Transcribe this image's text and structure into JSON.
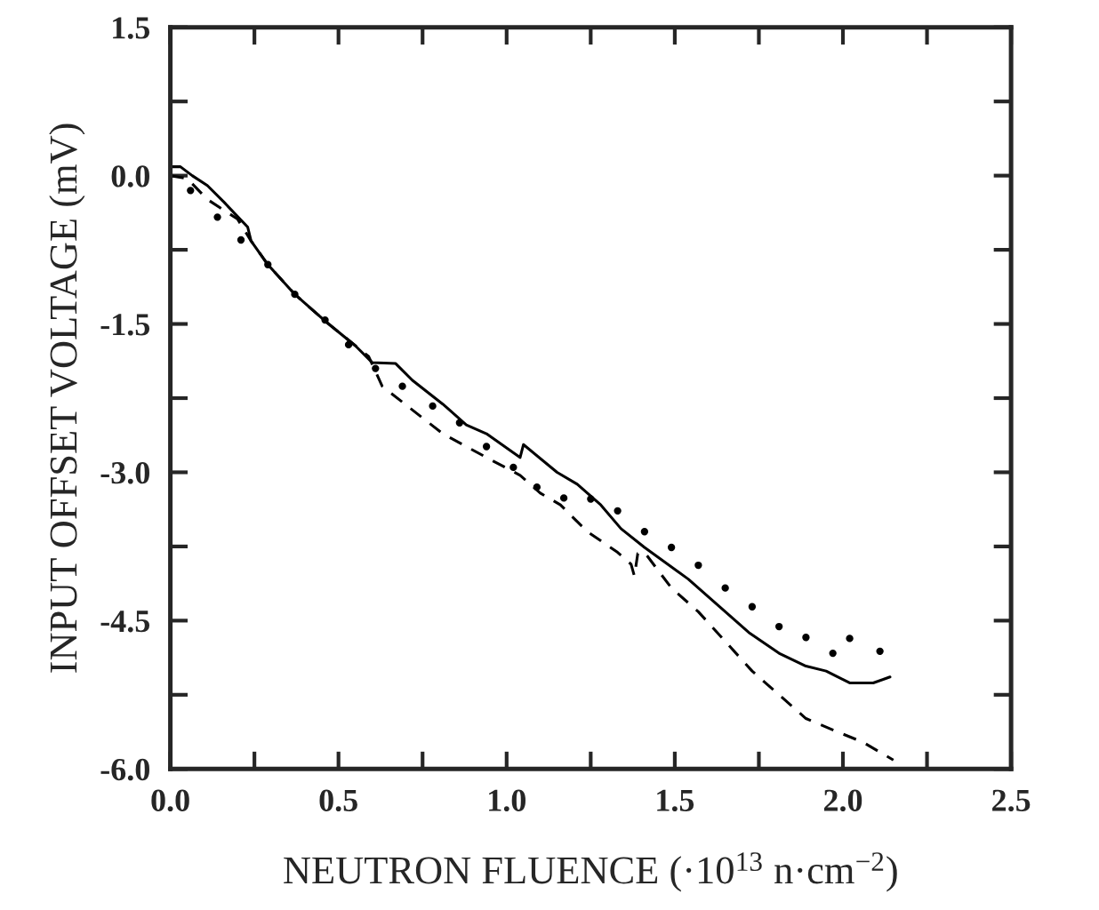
{
  "chart_data": {
    "type": "line",
    "xlabel": "NEUTRON FLUENCE (·10$^{13}$ n·cm$^{−2}$)",
    "ylabel": "INPUT OFFSET VOLTAGE (mV)",
    "xlim": [
      0,
      2.5
    ],
    "ylim": [
      -6.0,
      1.5
    ],
    "xticks": [
      {
        "value": 0,
        "label": "0.0"
      },
      {
        "value": 0.25,
        "label": null
      },
      {
        "value": 0.5,
        "label": "0.5"
      },
      {
        "value": 0.75,
        "label": null
      },
      {
        "value": 1.0,
        "label": "1.0"
      },
      {
        "value": 1.25,
        "label": null
      },
      {
        "value": 1.5,
        "label": "1.5"
      },
      {
        "value": 1.75,
        "label": null
      },
      {
        "value": 2.0,
        "label": "2.0"
      },
      {
        "value": 2.25,
        "label": null
      },
      {
        "value": 2.5,
        "label": "2.5"
      }
    ],
    "yticks": [
      {
        "value": -6.0,
        "label": "-6.0"
      },
      {
        "value": -5.25,
        "label": null
      },
      {
        "value": -4.5,
        "label": "-4.5"
      },
      {
        "value": -3.75,
        "label": null
      },
      {
        "value": -3.0,
        "label": "-3.0"
      },
      {
        "value": -2.25,
        "label": null
      },
      {
        "value": -1.5,
        "label": "-1.5"
      },
      {
        "value": -0.75,
        "label": null
      },
      {
        "value": 0.0,
        "label": "0.0"
      },
      {
        "value": 0.75,
        "label": null
      },
      {
        "value": 1.5,
        "label": "1.5"
      }
    ],
    "grid": false,
    "legend": false,
    "series": [
      {
        "color": "#000000",
        "line_style": "solid",
        "x": [
          0,
          0.03,
          0.065,
          0.11,
          0.16,
          0.23,
          0.24,
          0.29,
          0.37,
          0.46,
          0.55,
          0.6,
          0.67,
          0.72,
          0.81,
          0.88,
          0.94,
          1.04,
          1.05,
          1.15,
          1.21,
          1.28,
          1.34,
          1.41,
          1.54,
          1.63,
          1.72,
          1.81,
          1.89,
          1.95,
          2.02,
          2.09,
          2.14
        ],
        "values": [
          0.09,
          0.09,
          0.0,
          -0.1,
          -0.27,
          -0.52,
          -0.66,
          -0.9,
          -1.2,
          -1.47,
          -1.72,
          -1.89,
          -1.9,
          -2.07,
          -2.31,
          -2.52,
          -2.61,
          -2.85,
          -2.72,
          -3.0,
          -3.12,
          -3.33,
          -3.57,
          -3.76,
          -4.08,
          -4.35,
          -4.62,
          -4.83,
          -4.96,
          -5.01,
          -5.13,
          -5.13,
          -5.07
        ]
      },
      {
        "color": "#000000",
        "line_style": "dashed",
        "x": [
          0,
          0.05,
          0.11,
          0.2,
          0.24,
          0.29,
          0.37,
          0.46,
          0.59,
          0.63,
          0.72,
          0.81,
          0.94,
          1.04,
          1.1,
          1.16,
          1.24,
          1.33,
          1.37,
          1.38,
          1.39,
          1.41,
          1.49,
          1.57,
          1.65,
          1.73,
          1.81,
          1.89,
          1.98,
          2.06,
          2.15
        ],
        "values": [
          0.0,
          -0.03,
          -0.24,
          -0.44,
          -0.66,
          -0.9,
          -1.2,
          -1.47,
          -1.83,
          -2.13,
          -2.37,
          -2.61,
          -2.85,
          -3.03,
          -3.21,
          -3.33,
          -3.6,
          -3.81,
          -3.93,
          -4.05,
          -3.82,
          -3.81,
          -4.17,
          -4.41,
          -4.71,
          -5.01,
          -5.25,
          -5.49,
          -5.62,
          -5.73,
          -5.91
        ]
      },
      {
        "type": "scatter",
        "marker": "circle",
        "color": "#000000",
        "x": [
          0.06,
          0.14,
          0.21,
          0.29,
          0.37,
          0.46,
          0.53,
          0.61,
          0.69,
          0.78,
          0.86,
          0.94,
          1.02,
          1.09,
          1.17,
          1.25,
          1.33,
          1.41,
          1.49,
          1.57,
          1.65,
          1.73,
          1.81,
          1.89,
          1.97,
          2.02,
          2.11
        ],
        "values": [
          -0.15,
          -0.42,
          -0.65,
          -0.9,
          -1.2,
          -1.46,
          -1.71,
          -1.95,
          -2.13,
          -2.33,
          -2.5,
          -2.74,
          -2.95,
          -3.15,
          -3.26,
          -3.27,
          -3.39,
          -3.6,
          -3.76,
          -3.94,
          -4.17,
          -4.36,
          -4.56,
          -4.67,
          -4.83,
          -4.68,
          -4.81
        ]
      }
    ]
  }
}
